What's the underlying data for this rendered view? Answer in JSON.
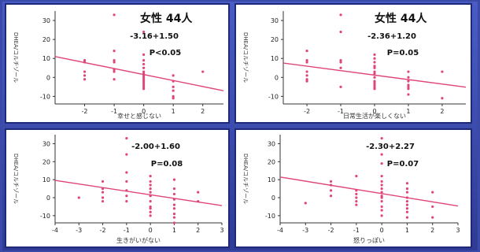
{
  "chart_data": [
    {
      "type": "scatter",
      "title": "女性 44人",
      "equation": "-3.16+1.50",
      "pvalue": "P<0.05",
      "xlabel": "幸せと感じない",
      "ylabel": "DHEA/コルチゾール",
      "xlim": [
        -3,
        2.7
      ],
      "ylim": [
        -14,
        35
      ],
      "xticks": [
        -2,
        -1,
        0,
        1,
        2
      ],
      "yticks": [
        -10,
        0,
        10,
        20,
        30
      ],
      "regression": {
        "intercept": 1.5,
        "slope": -3.16
      },
      "points": [
        [
          -2,
          9
        ],
        [
          -2,
          8
        ],
        [
          -2,
          3
        ],
        [
          -2,
          1
        ],
        [
          -2,
          -1
        ],
        [
          -1,
          33
        ],
        [
          -1,
          14
        ],
        [
          -1,
          9
        ],
        [
          -1,
          8
        ],
        [
          -1,
          4
        ],
        [
          -1,
          3
        ],
        [
          -1,
          -1
        ],
        [
          0,
          24
        ],
        [
          0,
          12
        ],
        [
          0,
          9
        ],
        [
          0,
          7
        ],
        [
          0,
          5
        ],
        [
          0,
          3
        ],
        [
          0,
          2
        ],
        [
          0,
          1
        ],
        [
          0,
          0
        ],
        [
          0,
          -1
        ],
        [
          0,
          -2
        ],
        [
          0,
          -3
        ],
        [
          0,
          -4
        ],
        [
          0,
          -5
        ],
        [
          0,
          -6
        ],
        [
          1,
          1
        ],
        [
          1,
          -2
        ],
        [
          1,
          -5
        ],
        [
          1,
          -7
        ],
        [
          1,
          -10
        ],
        [
          1,
          -11
        ],
        [
          2,
          3
        ]
      ]
    },
    {
      "type": "scatter",
      "title": "女性 44人",
      "equation": "-2.36+1.20",
      "pvalue": "P=0.05",
      "xlabel": "日常生活が楽しくない",
      "ylabel": "DHEA/コルチゾール",
      "xlim": [
        -2.7,
        2.7
      ],
      "ylim": [
        -14,
        35
      ],
      "xticks": [
        -2,
        -1,
        0,
        1,
        2
      ],
      "yticks": [
        -10,
        0,
        10,
        20,
        30
      ],
      "regression": {
        "intercept": 1.2,
        "slope": -2.36
      },
      "points": [
        [
          -2,
          14
        ],
        [
          -2,
          9
        ],
        [
          -2,
          8
        ],
        [
          -2,
          3
        ],
        [
          -2,
          1
        ],
        [
          -2,
          -1
        ],
        [
          -2,
          -2
        ],
        [
          -1,
          33
        ],
        [
          -1,
          24
        ],
        [
          -1,
          9
        ],
        [
          -1,
          8
        ],
        [
          -1,
          5
        ],
        [
          -1,
          -5
        ],
        [
          0,
          12
        ],
        [
          0,
          10
        ],
        [
          0,
          8
        ],
        [
          0,
          6
        ],
        [
          0,
          5
        ],
        [
          0,
          3
        ],
        [
          0,
          2
        ],
        [
          0,
          0
        ],
        [
          0,
          -2
        ],
        [
          0,
          -3
        ],
        [
          0,
          -4
        ],
        [
          0,
          -5
        ],
        [
          0,
          -6
        ],
        [
          1,
          3
        ],
        [
          1,
          0
        ],
        [
          1,
          -2
        ],
        [
          1,
          -4
        ],
        [
          1,
          -5
        ],
        [
          1,
          -6
        ],
        [
          1,
          -9
        ],
        [
          2,
          3
        ],
        [
          2,
          -11
        ]
      ]
    },
    {
      "type": "scatter",
      "title": "",
      "equation": "-2.00+1.60",
      "pvalue": "P=0.08",
      "xlabel": "生きがいがない",
      "ylabel": "DHEA/コルチゾール",
      "xlim": [
        -4,
        3
      ],
      "ylim": [
        -14,
        35
      ],
      "xticks": [
        -4,
        -3,
        -2,
        -1,
        0,
        1,
        2,
        3
      ],
      "yticks": [
        -10,
        0,
        10,
        20,
        30
      ],
      "regression": {
        "intercept": 1.6,
        "slope": -2.0
      },
      "points": [
        [
          -3,
          0
        ],
        [
          -2,
          9
        ],
        [
          -2,
          5
        ],
        [
          -2,
          3
        ],
        [
          -2,
          0
        ],
        [
          -2,
          -2
        ],
        [
          -1,
          33
        ],
        [
          -1,
          24
        ],
        [
          -1,
          14
        ],
        [
          -1,
          9
        ],
        [
          -1,
          4
        ],
        [
          -1,
          1
        ],
        [
          -1,
          -2
        ],
        [
          0,
          12
        ],
        [
          0,
          9
        ],
        [
          0,
          7
        ],
        [
          0,
          5
        ],
        [
          0,
          3
        ],
        [
          0,
          1
        ],
        [
          0,
          -2
        ],
        [
          0,
          -5
        ],
        [
          0,
          -6
        ],
        [
          0,
          -8
        ],
        [
          0,
          -10
        ],
        [
          1,
          10
        ],
        [
          1,
          5
        ],
        [
          1,
          2
        ],
        [
          1,
          -1
        ],
        [
          1,
          -4
        ],
        [
          1,
          -6
        ],
        [
          1,
          -9
        ],
        [
          1,
          -11
        ],
        [
          1,
          -14
        ],
        [
          2,
          3
        ],
        [
          2,
          -2
        ]
      ]
    },
    {
      "type": "scatter",
      "title": "",
      "equation": "-2.30+2.27",
      "pvalue": "P=0.07",
      "xlabel": "怒りっぽい",
      "ylabel": "DHEA/コルチゾール",
      "xlim": [
        -4,
        3
      ],
      "ylim": [
        -14,
        35
      ],
      "xticks": [
        -4,
        -3,
        -2,
        -1,
        0,
        1,
        2,
        3
      ],
      "yticks": [
        -10,
        0,
        10,
        20,
        30
      ],
      "regression": {
        "intercept": 2.27,
        "slope": -2.3
      },
      "points": [
        [
          -3,
          -3
        ],
        [
          -2,
          9
        ],
        [
          -2,
          7
        ],
        [
          -2,
          4
        ],
        [
          -2,
          1
        ],
        [
          -1,
          12
        ],
        [
          -1,
          4
        ],
        [
          -1,
          2
        ],
        [
          -1,
          0
        ],
        [
          -1,
          -2
        ],
        [
          -1,
          -4
        ],
        [
          0,
          33
        ],
        [
          0,
          24
        ],
        [
          0,
          19
        ],
        [
          0,
          12
        ],
        [
          0,
          9
        ],
        [
          0,
          7
        ],
        [
          0,
          5
        ],
        [
          0,
          3
        ],
        [
          0,
          1
        ],
        [
          0,
          0
        ],
        [
          0,
          -2
        ],
        [
          0,
          -5
        ],
        [
          0,
          -7
        ],
        [
          0,
          -10
        ],
        [
          1,
          8
        ],
        [
          1,
          5
        ],
        [
          1,
          3
        ],
        [
          1,
          0
        ],
        [
          1,
          -2
        ],
        [
          1,
          -4
        ],
        [
          1,
          -6
        ],
        [
          1,
          -8
        ],
        [
          1,
          -11
        ],
        [
          2,
          3
        ],
        [
          2,
          -5
        ],
        [
          2,
          -11
        ]
      ]
    }
  ]
}
